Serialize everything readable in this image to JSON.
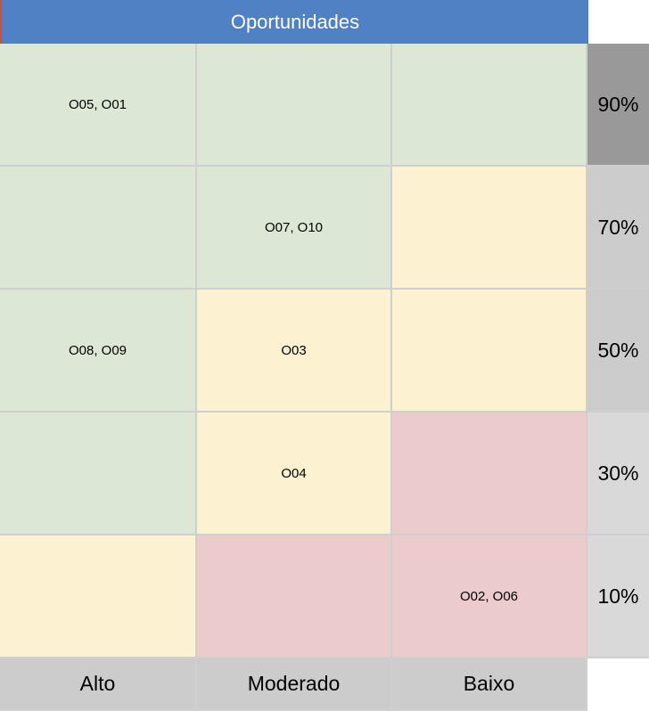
{
  "title": "Oportunidades",
  "colors": {
    "header": "#4f81c4",
    "green": "#dce8d5",
    "yellow": "#fcf2d1",
    "red": "#ebcbcb"
  },
  "rows": [
    {
      "probability": "90%",
      "cells": [
        "O05, O01",
        "",
        ""
      ]
    },
    {
      "probability": "70%",
      "cells": [
        "",
        "O07, O10",
        ""
      ]
    },
    {
      "probability": "50%",
      "cells": [
        "O08, O09",
        "O03",
        ""
      ]
    },
    {
      "probability": "30%",
      "cells": [
        "",
        "O04",
        ""
      ]
    },
    {
      "probability": "10%",
      "cells": [
        "",
        "",
        "O02, O06"
      ]
    }
  ],
  "impact_labels": [
    "Alto",
    "Moderado",
    "Baixo"
  ]
}
